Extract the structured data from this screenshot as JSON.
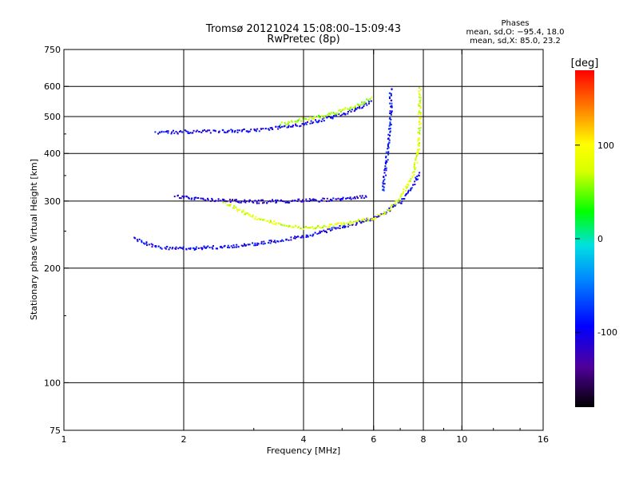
{
  "header": {
    "title_line1": "Tromsø 20121024 15:08:00–15:09:43",
    "title_line2": "RwPretec (8p)"
  },
  "stats": {
    "heading": "Phases",
    "line_o": "mean, sd,O: −95.4, 18.0",
    "line_x": "mean, sd,X: 85.0, 23.2"
  },
  "chart_data": {
    "type": "scatter",
    "title": "Tromsø 20121024 15:08:00–15:09:43",
    "subtitle": "RwPretec (8p)",
    "xlabel": "Frequency [MHz]",
    "ylabel": "Stationary phase Virtual Height [km]",
    "x_scale": "log",
    "y_scale": "log",
    "xlim": [
      1,
      16
    ],
    "ylim": [
      75,
      750
    ],
    "x_ticks": [
      1,
      2,
      4,
      6,
      8,
      10,
      16
    ],
    "y_ticks": [
      75,
      100,
      200,
      300,
      400,
      500,
      600,
      750
    ],
    "x_grid": [
      2,
      4,
      6,
      8,
      10
    ],
    "y_grid": [
      100,
      200,
      300,
      400,
      500,
      600
    ],
    "grid": true,
    "colorbar": {
      "unit": "[deg]",
      "ticks": [
        100,
        0,
        -100
      ],
      "min": -180,
      "max": 180,
      "placement": "right"
    },
    "traces": [
      {
        "name": "",
        "phase": -100,
        "points": [
          [
            1.5,
            240
          ],
          [
            1.7,
            228
          ],
          [
            2.0,
            226
          ],
          [
            2.5,
            228
          ],
          [
            3.0,
            232
          ],
          [
            4.0,
            243
          ],
          [
            5.0,
            258
          ],
          [
            6.0,
            272
          ],
          [
            6.5,
            285
          ],
          [
            7.0,
            300
          ],
          [
            7.5,
            330
          ],
          [
            7.8,
            360
          ]
        ]
      },
      {
        "name": "",
        "phase": 80,
        "points": [
          [
            2.5,
            300
          ],
          [
            3.0,
            272
          ],
          [
            3.5,
            262
          ],
          [
            4.0,
            256
          ],
          [
            5.0,
            262
          ],
          [
            6.0,
            272
          ],
          [
            6.5,
            285
          ],
          [
            7.0,
            310
          ],
          [
            7.5,
            350
          ],
          [
            7.7,
            400
          ],
          [
            7.8,
            480
          ],
          [
            7.8,
            600
          ]
        ]
      },
      {
        "name": "",
        "phase": -100,
        "points": [
          [
            1.7,
            455
          ],
          [
            2.0,
            458
          ],
          [
            2.5,
            460
          ],
          [
            3.0,
            462
          ],
          [
            3.5,
            470
          ],
          [
            4.0,
            480
          ],
          [
            4.5,
            495
          ],
          [
            5.0,
            510
          ],
          [
            5.5,
            530
          ],
          [
            5.9,
            550
          ]
        ]
      },
      {
        "name": "",
        "phase": 60,
        "points": [
          [
            3.5,
            480
          ],
          [
            4.0,
            495
          ],
          [
            4.5,
            505
          ],
          [
            5.0,
            520
          ],
          [
            5.5,
            540
          ],
          [
            5.9,
            560
          ]
        ]
      },
      {
        "name": "",
        "phase": -110,
        "points": [
          [
            1.9,
            310
          ],
          [
            2.5,
            302
          ],
          [
            3.0,
            300
          ],
          [
            4.0,
            302
          ],
          [
            5.0,
            305
          ],
          [
            5.8,
            310
          ]
        ]
      },
      {
        "name": "",
        "phase": -90,
        "points": [
          [
            6.3,
            320
          ],
          [
            6.4,
            370
          ],
          [
            6.5,
            420
          ],
          [
            6.6,
            500
          ],
          [
            6.6,
            600
          ]
        ]
      }
    ]
  }
}
